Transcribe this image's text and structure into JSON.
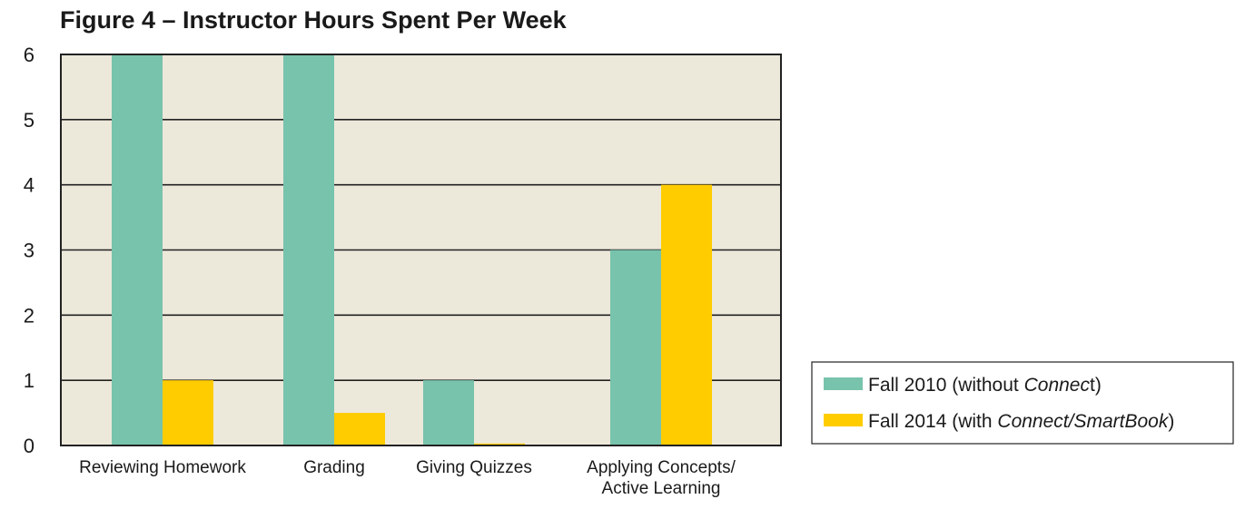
{
  "colors": {
    "plot_background": "#ece8da",
    "gridline": "#222222",
    "axis": "#222222",
    "series_2010": "#78c3ac",
    "series_2014": "#ffcc00"
  },
  "chart_data": {
    "type": "bar",
    "title": "Figure 4 – Instructor Hours Spent Per Week",
    "xlabel": "",
    "ylabel": "",
    "ylim": [
      0,
      6
    ],
    "yticks": [
      "0",
      "1",
      "2",
      "3",
      "4",
      "5",
      "6"
    ],
    "grid": true,
    "legend_position": "bottom-right",
    "categories": [
      [
        "Reviewing Homework"
      ],
      [
        "Grading"
      ],
      [
        "Giving Quizzes"
      ],
      [
        "Applying Concepts/",
        "Active Learning"
      ]
    ],
    "series": [
      {
        "name": "Fall 2010 (without Connect)",
        "name_parts": [
          {
            "text": "Fall 2010 (without ",
            "italic": false
          },
          {
            "text": "Connec",
            "italic": true
          },
          {
            "text": "t)",
            "italic": false
          }
        ],
        "values": [
          6,
          6,
          1,
          3
        ]
      },
      {
        "name": "Fall 2014 (with Connect/SmartBook)",
        "name_parts": [
          {
            "text": "Fall 2014 (with ",
            "italic": false
          },
          {
            "text": "Connect/SmartBook",
            "italic": true
          },
          {
            "text": ")",
            "italic": false
          }
        ],
        "values": [
          1,
          0.5,
          0.03,
          4
        ]
      }
    ]
  }
}
